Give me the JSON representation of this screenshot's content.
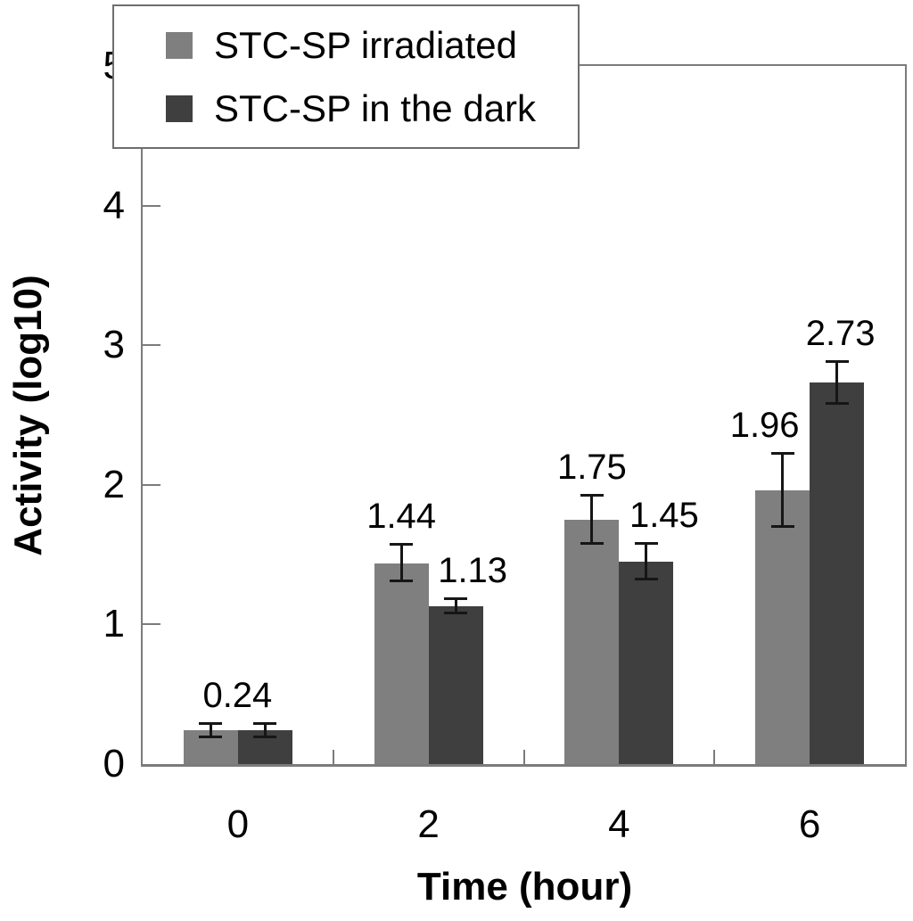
{
  "chart_data": {
    "type": "bar",
    "title": "",
    "xlabel": "Time (hour)",
    "ylabel": "Activity (log10)",
    "categories": [
      "0",
      "2",
      "4",
      "6"
    ],
    "ylim": [
      0,
      5
    ],
    "yticks": [
      "0",
      "1",
      "2",
      "3",
      "4",
      "5"
    ],
    "grid": false,
    "legend_position": "top-left",
    "plot_border_color": "#7b7b7b",
    "error_bar_color": "#161616",
    "data_label_color": "#000000",
    "series": [
      {
        "name": "STC-SP irradiated",
        "color": "#7f7f7f",
        "values": [
          0.24,
          1.44,
          1.75,
          1.96
        ],
        "errors": [
          0.05,
          0.13,
          0.17,
          0.26
        ],
        "data_labels": [
          "0.24",
          "1.44",
          "1.75",
          "1.96"
        ]
      },
      {
        "name": "STC-SP in the dark",
        "color": "#3f3f3f",
        "values": [
          0.24,
          1.13,
          1.45,
          2.73
        ],
        "errors": [
          0.05,
          0.05,
          0.13,
          0.15
        ],
        "data_labels": [
          "",
          "1.13",
          "1.45",
          "2.73"
        ]
      }
    ]
  }
}
